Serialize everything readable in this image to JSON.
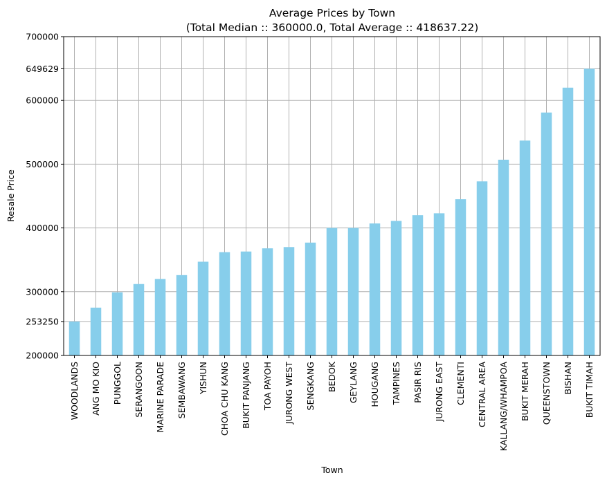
{
  "chart_data": {
    "type": "bar",
    "title": "Average Prices by Town",
    "subtitle": "(Total Median :: 360000.0, Total Average :: 418637.22)",
    "xlabel": "Town",
    "ylabel": "Resale Price",
    "ylim": [
      200000,
      700000
    ],
    "yticks": [
      200000,
      253250,
      300000,
      400000,
      500000,
      600000,
      649629,
      700000
    ],
    "grid": true,
    "bar_color": "#87ceeb",
    "categories": [
      "WOODLANDS",
      "ANG MO KIO",
      "PUNGGOL",
      "SERANGOON",
      "MARINE PARADE",
      "SEMBAWANG",
      "YISHUN",
      "CHOA CHU KANG",
      "BUKIT PANJANG",
      "TOA PAYOH",
      "JURONG WEST",
      "SENGKANG",
      "BEDOK",
      "GEYLANG",
      "HOUGANG",
      "TAMPINES",
      "PASIR RIS",
      "JURONG EAST",
      "CLEMENTI",
      "CENTRAL AREA",
      "KALLANG/WHAMPOA",
      "BUKIT MERAH",
      "QUEENSTOWN",
      "BISHAN",
      "BUKIT TIMAH"
    ],
    "values": [
      253250,
      275000,
      299000,
      312000,
      320000,
      326000,
      347000,
      362000,
      363000,
      368000,
      370000,
      377000,
      400000,
      400000,
      407000,
      411000,
      420000,
      423000,
      445000,
      473000,
      507000,
      537000,
      581000,
      620000,
      649629
    ]
  }
}
